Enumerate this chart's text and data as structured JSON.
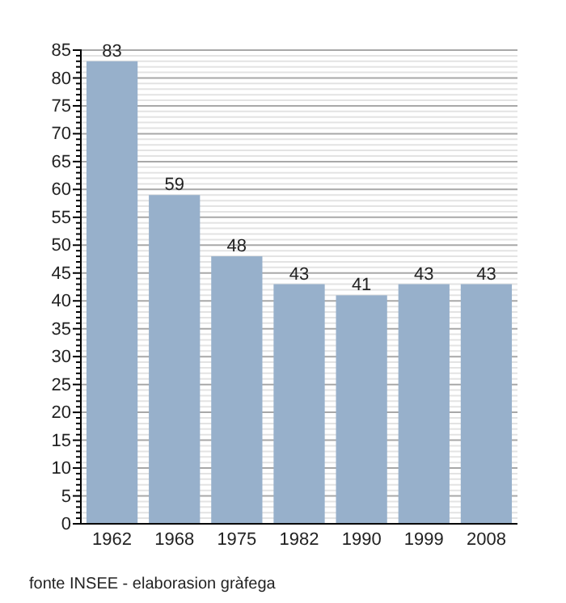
{
  "chart_data": {
    "type": "bar",
    "categories": [
      "1962",
      "1968",
      "1975",
      "1982",
      "1990",
      "1999",
      "2008"
    ],
    "values": [
      83,
      59,
      48,
      43,
      41,
      43,
      43
    ],
    "color": "#97b0cb",
    "ylim": [
      0,
      85
    ],
    "yticks": [
      0,
      {
        "value": 1,
        "label": null
      },
      {
        "value": 2,
        "label": null
      },
      {
        "value": 3,
        "label": null
      },
      {
        "value": 4,
        "label": null
      },
      5,
      {
        "value": 6,
        "label": null
      },
      {
        "value": 7,
        "label": null
      },
      {
        "value": 8,
        "label": null
      },
      {
        "value": 9,
        "label": null
      },
      10,
      {
        "value": 11,
        "label": null
      },
      {
        "value": 12,
        "label": null
      },
      {
        "value": 13,
        "label": null
      },
      {
        "value": 14,
        "label": null
      },
      15,
      {
        "value": 16,
        "label": null
      },
      {
        "value": 17,
        "label": null
      },
      {
        "value": 18,
        "label": null
      },
      {
        "value": 19,
        "label": null
      },
      20,
      {
        "value": 21,
        "label": null
      },
      {
        "value": 22,
        "label": null
      },
      {
        "value": 23,
        "label": null
      },
      {
        "value": 24,
        "label": null
      },
      25,
      {
        "value": 26,
        "label": null
      },
      {
        "value": 27,
        "label": null
      },
      {
        "value": 28,
        "label": null
      },
      {
        "value": 29,
        "label": null
      },
      30,
      {
        "value": 31,
        "label": null
      },
      {
        "value": 32,
        "label": null
      },
      {
        "value": 33,
        "label": null
      },
      {
        "value": 34,
        "label": null
      },
      35,
      {
        "value": 36,
        "label": null
      },
      {
        "value": 37,
        "label": null
      },
      {
        "value": 38,
        "label": null
      },
      {
        "value": 39,
        "label": null
      },
      40,
      {
        "value": 41,
        "label": null
      },
      {
        "value": 42,
        "label": null
      },
      {
        "value": 43,
        "label": null
      },
      {
        "value": 44,
        "label": null
      },
      45,
      {
        "value": 46,
        "label": null
      },
      {
        "value": 47,
        "label": null
      },
      {
        "value": 48,
        "label": null
      },
      {
        "value": 49,
        "label": null
      },
      50,
      {
        "value": 51,
        "label": null
      },
      {
        "value": 52,
        "label": null
      },
      {
        "value": 53,
        "label": null
      },
      {
        "value": 54,
        "label": null
      },
      55,
      {
        "value": 56,
        "label": null
      },
      {
        "value": 57,
        "label": null
      },
      {
        "value": 58,
        "label": null
      },
      {
        "value": 59,
        "label": null
      },
      60,
      {
        "value": 61,
        "label": null
      },
      {
        "value": 62,
        "label": null
      },
      {
        "value": 63,
        "label": null
      },
      {
        "value": 64,
        "label": null
      },
      65,
      {
        "value": 66,
        "label": null
      },
      {
        "value": 67,
        "label": null
      },
      {
        "value": 68,
        "label": null
      },
      {
        "value": 69,
        "label": null
      },
      70,
      {
        "value": 71,
        "label": null
      },
      {
        "value": 72,
        "label": null
      },
      {
        "value": 73,
        "label": null
      },
      {
        "value": 74,
        "label": null
      },
      75,
      {
        "value": 76,
        "label": null
      },
      {
        "value": 77,
        "label": null
      },
      {
        "value": 78,
        "label": null
      },
      {
        "value": 79,
        "label": null
      },
      80,
      {
        "value": 81,
        "label": null
      },
      {
        "value": 82,
        "label": null
      },
      {
        "value": 83,
        "label": null
      },
      {
        "value": 84,
        "label": null
      },
      85
    ],
    "grid": "y",
    "data_labels": true,
    "annotations": [
      "fonte INSEE - elaborasion gràfega"
    ]
  }
}
